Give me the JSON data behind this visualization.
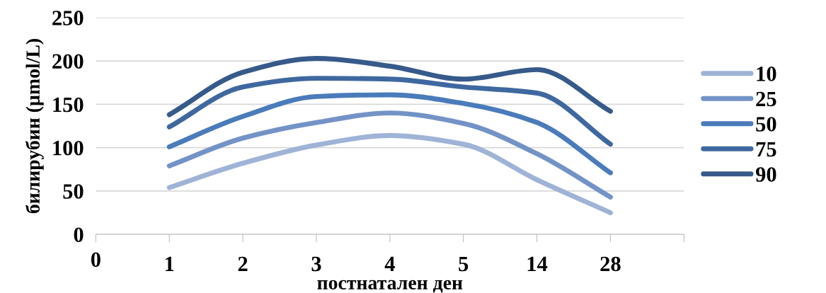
{
  "chart_data": {
    "type": "line",
    "xlabel": "постнатален ден",
    "ylabel": "билирубин (µmol/L)",
    "categories": [
      "0",
      "1",
      "2",
      "3",
      "4",
      "5",
      "14",
      "28",
      null
    ],
    "series": [
      {
        "name": "10",
        "color": "#9fb3d7",
        "values": [
          null,
          54,
          82,
          103,
          114,
          104,
          63,
          25,
          null
        ]
      },
      {
        "name": "25",
        "color": "#7393c7",
        "values": [
          null,
          79,
          111,
          129,
          140,
          128,
          93,
          43,
          null
        ]
      },
      {
        "name": "50",
        "color": "#4a7bba",
        "values": [
          null,
          101,
          136,
          159,
          161,
          151,
          129,
          71,
          null
        ]
      },
      {
        "name": "75",
        "color": "#3e689f",
        "values": [
          null,
          124,
          170,
          180,
          179,
          170,
          163,
          104,
          null
        ]
      },
      {
        "name": "90",
        "color": "#365a8a",
        "values": [
          null,
          138,
          187,
          203,
          194,
          179,
          190,
          142,
          null
        ]
      }
    ],
    "ylim": [
      0,
      250
    ],
    "yticks": [
      0,
      50,
      100,
      150,
      200,
      250
    ],
    "grid": "y",
    "legend": "right",
    "marker": "none",
    "line_style": "solid"
  }
}
